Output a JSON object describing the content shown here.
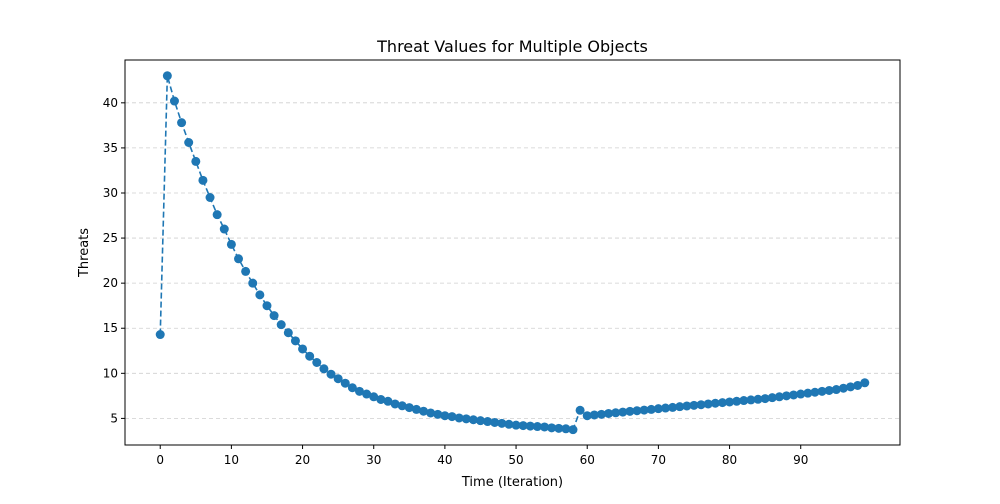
{
  "chart_data": {
    "type": "line",
    "title": "Threat Values for Multiple Objects",
    "xlabel": "Time (Iteration)",
    "ylabel": "Threats",
    "xlim": [
      -4.95,
      103.95
    ],
    "ylim": [
      2.05,
      44.75
    ],
    "x_ticks": [
      0,
      10,
      20,
      30,
      40,
      50,
      60,
      70,
      80,
      90
    ],
    "y_ticks": [
      5,
      10,
      15,
      20,
      25,
      30,
      35,
      40
    ],
    "grid": {
      "y": true,
      "x": false,
      "style": "dashed"
    },
    "line_style": "dashed",
    "marker": "circle",
    "series": [
      {
        "color": "#1f77b4",
        "x": [
          0,
          1,
          2,
          3,
          4,
          5,
          6,
          7,
          8,
          9,
          10,
          11,
          12,
          13,
          14,
          15,
          16,
          17,
          18,
          19,
          20,
          21,
          22,
          23,
          24,
          25,
          26,
          27,
          28,
          29,
          30,
          31,
          32,
          33,
          34,
          35,
          36,
          37,
          38,
          39,
          40,
          41,
          42,
          43,
          44,
          45,
          46,
          47,
          48,
          49,
          50,
          51,
          52,
          53,
          54,
          55,
          56,
          57,
          58,
          59,
          60,
          61,
          62,
          63,
          64,
          65,
          66,
          67,
          68,
          69,
          70,
          71,
          72,
          73,
          74,
          75,
          76,
          77,
          78,
          79,
          80,
          81,
          82,
          83,
          84,
          85,
          86,
          87,
          88,
          89,
          90,
          91,
          92,
          93,
          94,
          95,
          96,
          97,
          98,
          99
        ],
        "values": [
          14.3,
          43.0,
          40.2,
          37.8,
          35.6,
          33.5,
          31.4,
          29.5,
          27.6,
          26.0,
          24.3,
          22.7,
          21.3,
          20.0,
          18.7,
          17.5,
          16.4,
          15.4,
          14.5,
          13.6,
          12.7,
          11.9,
          11.2,
          10.5,
          9.9,
          9.4,
          8.9,
          8.4,
          8.0,
          7.7,
          7.4,
          7.1,
          6.9,
          6.6,
          6.4,
          6.2,
          6.0,
          5.8,
          5.6,
          5.45,
          5.3,
          5.2,
          5.05,
          4.95,
          4.85,
          4.75,
          4.65,
          4.55,
          4.45,
          4.35,
          4.25,
          4.2,
          4.15,
          4.1,
          4.05,
          3.95,
          3.9,
          3.85,
          3.75,
          5.9,
          5.3,
          5.38,
          5.45,
          5.55,
          5.62,
          5.7,
          5.78,
          5.85,
          5.92,
          6.0,
          6.08,
          6.15,
          6.22,
          6.3,
          6.38,
          6.45,
          6.52,
          6.6,
          6.68,
          6.75,
          6.82,
          6.9,
          6.98,
          7.05,
          7.12,
          7.2,
          7.3,
          7.4,
          7.5,
          7.6,
          7.7,
          7.8,
          7.9,
          8.0,
          8.1,
          8.2,
          8.35,
          8.5,
          8.65,
          8.95
        ]
      }
    ]
  }
}
